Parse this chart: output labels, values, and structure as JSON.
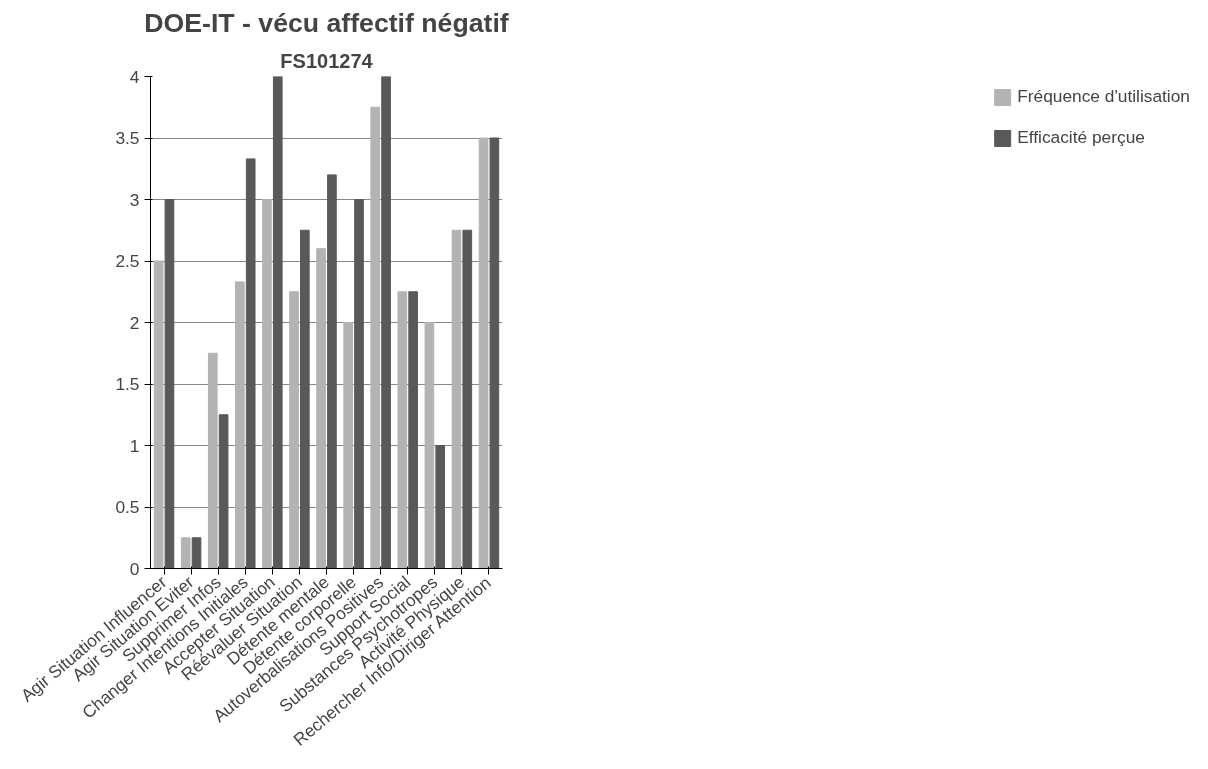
{
  "chart_data": {
    "type": "bar",
    "title": "DOE-IT - vécu affectif négatif",
    "subtitle": "FS101274",
    "categories": [
      "Agir Situation Influencer",
      "Agir Situation Eviter",
      "Supprimer Infos",
      "Changer Intentions Initiales",
      "Accepter Situation",
      "Réévaluer Situation",
      "Détente mentale",
      "Détente corporelle",
      "Autoverbalisations Positives",
      "Support Social",
      "Substances Psychotropes",
      "Activité Physique",
      "Rechercher Info/Diriger Attention"
    ],
    "series": [
      {
        "name": "Fréquence d'utilisation",
        "color": "#b3b3b3",
        "values": [
          2.5,
          0.25,
          1.75,
          2.33,
          3,
          2.25,
          2.6,
          2,
          3.75,
          2.25,
          2,
          2.75,
          3.5
        ]
      },
      {
        "name": "Efficacité perçue",
        "color": "#595959",
        "values": [
          3,
          0.25,
          1.25,
          3.33,
          4,
          2.75,
          3.2,
          3,
          4,
          2.25,
          1,
          2.75,
          3.5
        ]
      }
    ],
    "ylim": [
      0,
      4
    ],
    "yticks": [
      0,
      0.5,
      1,
      1.5,
      2,
      2.5,
      3,
      3.5,
      4
    ],
    "grid": "y",
    "legend": "right"
  }
}
